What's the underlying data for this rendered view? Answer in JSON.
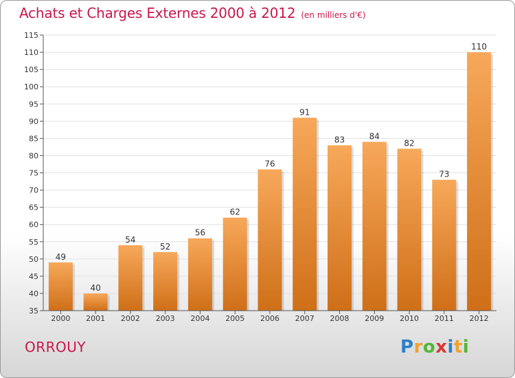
{
  "header": {
    "title": "Achats et Charges Externes 2000 à 2012",
    "unit": "(en milliers d'€)"
  },
  "footer": {
    "commune": "ORROUY",
    "brand": "Proxiti",
    "brand_letters": [
      "P",
      "r",
      "o",
      "x",
      "i",
      "t",
      "i"
    ]
  },
  "colors": {
    "title": "#c8174b",
    "bar_light": "#f7a85a",
    "bar_dark": "#cf6f18",
    "grid": "#e2e2e2",
    "axis": "#555555"
  },
  "chart_data": {
    "type": "bar",
    "title": "Achats et Charges Externes 2000 à 2012",
    "categories": [
      "2000",
      "2001",
      "2002",
      "2003",
      "2004",
      "2005",
      "2006",
      "2007",
      "2008",
      "2009",
      "2010",
      "2011",
      "2012"
    ],
    "values": [
      49,
      40,
      54,
      52,
      56,
      62,
      76,
      91,
      83,
      84,
      82,
      73,
      110
    ],
    "ylim": [
      35,
      115
    ],
    "yticks": [
      35,
      40,
      45,
      50,
      55,
      60,
      65,
      70,
      75,
      80,
      85,
      90,
      95,
      100,
      105,
      110,
      115
    ],
    "grid": true,
    "data_labels": true
  }
}
